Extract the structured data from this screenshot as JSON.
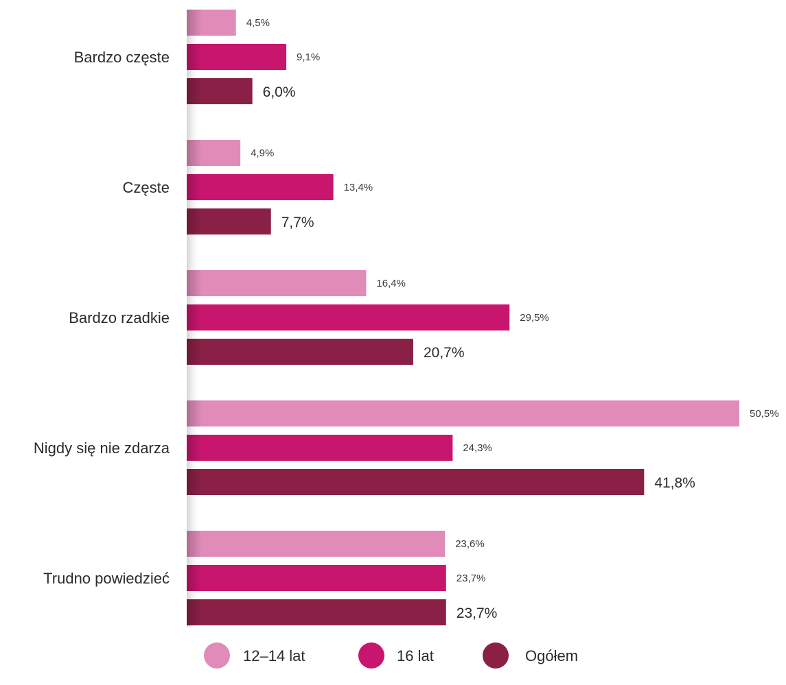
{
  "chart_data": {
    "type": "bar",
    "orientation": "horizontal",
    "title": "",
    "xlabel": "",
    "ylabel": "",
    "categories": [
      "Bardzo częste",
      "Częste",
      "Bardzo rzadkie",
      "Nigdy się nie zdarza",
      "Trudno powiedzieć"
    ],
    "series": [
      {
        "name": "12–14 lat",
        "color": "#e08bb8",
        "values": [
          4.5,
          4.9,
          16.4,
          50.5,
          23.6
        ],
        "labels": [
          "4,5%",
          "4,9%",
          "16,4%",
          "50,5%",
          "23,6%"
        ]
      },
      {
        "name": "16 lat",
        "color": "#c8156e",
        "values": [
          9.1,
          13.4,
          29.5,
          24.3,
          23.7
        ],
        "labels": [
          "9,1%",
          "13,4%",
          "29,5%",
          "24,3%",
          "23,7%"
        ]
      },
      {
        "name": "Ogółem",
        "color": "#8b2046",
        "values": [
          6.0,
          7.7,
          20.7,
          41.8,
          23.7
        ],
        "labels": [
          "6,0%",
          "7,7%",
          "20,7%",
          "41,8%",
          "23,7%"
        ]
      }
    ],
    "xlim": [
      0,
      50.5
    ],
    "grid": false,
    "legend_position": "bottom"
  }
}
